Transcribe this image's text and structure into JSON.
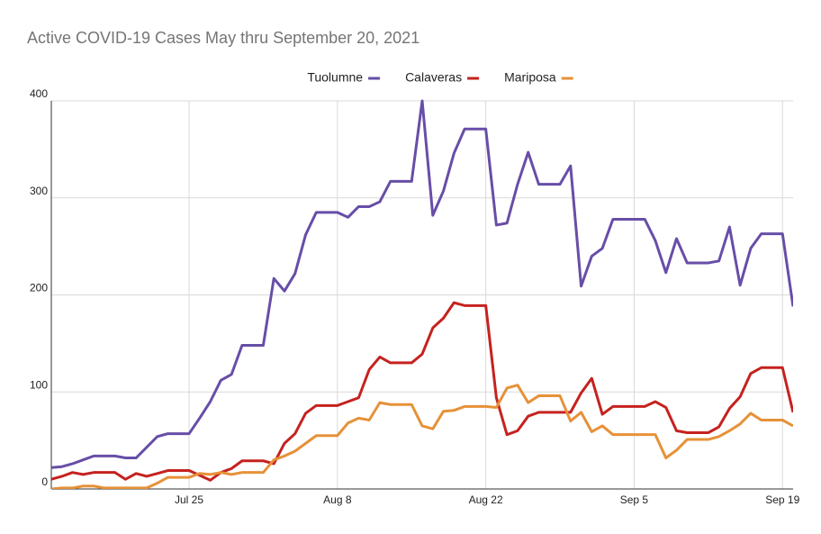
{
  "chart_data": {
    "type": "line",
    "title": "Active COVID-19 Cases May thru September 20, 2021",
    "categories": [
      null,
      null,
      null,
      null,
      null,
      null,
      null,
      null,
      null,
      null,
      null,
      null,
      null,
      "Jul 25",
      null,
      null,
      null,
      null,
      null,
      null,
      null,
      null,
      null,
      null,
      null,
      null,
      null,
      "Aug 8",
      null,
      null,
      null,
      null,
      null,
      null,
      null,
      null,
      null,
      null,
      null,
      null,
      null,
      "Aug 22",
      null,
      null,
      null,
      null,
      null,
      null,
      null,
      null,
      null,
      null,
      null,
      null,
      null,
      "Sep 5",
      null,
      null,
      null,
      null,
      null,
      null,
      null,
      null,
      null,
      null,
      null,
      null,
      null,
      "Sep 19",
      null
    ],
    "series": [
      {
        "name": "Tuolumne",
        "color": "#674ea7",
        "values": [
          22,
          23,
          26,
          30,
          34,
          34,
          34,
          32,
          32,
          43,
          54,
          57,
          57,
          57,
          73,
          90,
          112,
          118,
          148,
          148,
          148,
          217,
          204,
          222,
          262,
          285,
          285,
          285,
          280,
          291,
          291,
          296,
          317,
          317,
          317,
          400,
          282,
          307,
          346,
          371,
          371,
          371,
          272,
          274,
          314,
          347,
          314,
          314,
          314,
          333,
          209,
          240,
          248,
          278,
          278,
          278,
          278,
          256,
          223,
          258,
          233,
          233,
          233,
          235,
          270,
          210,
          248,
          263,
          263,
          263,
          188
        ]
      },
      {
        "name": "Calaveras",
        "color": "#c5221f",
        "values": [
          10,
          13,
          17,
          15,
          17,
          17,
          17,
          10,
          16,
          13,
          16,
          19,
          19,
          19,
          14,
          9,
          17,
          21,
          29,
          29,
          29,
          26,
          47,
          57,
          78,
          86,
          86,
          86,
          90,
          94,
          123,
          136,
          130,
          130,
          130,
          139,
          166,
          176,
          192,
          189,
          189,
          189,
          94,
          56,
          60,
          75,
          79,
          79,
          79,
          79,
          99,
          114,
          77,
          85,
          85,
          85,
          85,
          90,
          84,
          60,
          58,
          58,
          58,
          64,
          83,
          95,
          119,
          125,
          125,
          125,
          79
        ]
      },
      {
        "name": "Mariposa",
        "color": "#e69138",
        "values": [
          0,
          1,
          1,
          3,
          3,
          1,
          1,
          1,
          1,
          1,
          6,
          12,
          12,
          12,
          16,
          15,
          17,
          15,
          17,
          17,
          17,
          30,
          34,
          39,
          47,
          55,
          55,
          55,
          68,
          73,
          71,
          89,
          87,
          87,
          87,
          65,
          62,
          80,
          81,
          85,
          85,
          85,
          84,
          104,
          107,
          89,
          96,
          96,
          96,
          70,
          79,
          59,
          65,
          56,
          56,
          56,
          56,
          56,
          32,
          40,
          51,
          51,
          51,
          54,
          60,
          67,
          78,
          71,
          71,
          71,
          65
        ]
      }
    ],
    "ylim": [
      0,
      400
    ],
    "yticks": [
      0,
      100,
      200,
      300,
      400
    ],
    "grid": true,
    "legend": "top"
  }
}
